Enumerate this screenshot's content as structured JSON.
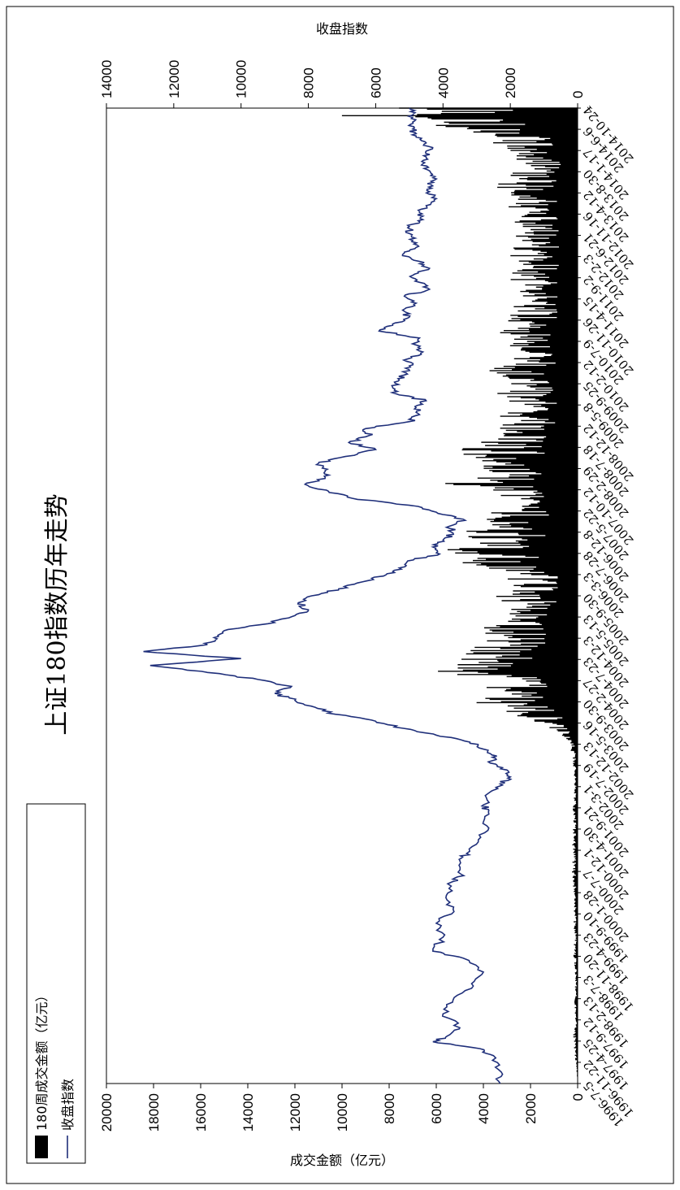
{
  "chart_data": {
    "type": "bar+line",
    "title": "上证180指数历年走势",
    "left_axis_label": "成交金额（亿元）",
    "right_axis_label": "收盘指数",
    "left_ylim": [
      0,
      20000
    ],
    "left_ticks": [
      "0",
      "2000",
      "4000",
      "6000",
      "8000",
      "10000",
      "12000",
      "14000",
      "16000",
      "18000",
      "20000"
    ],
    "right_ylim": [
      0,
      14000
    ],
    "right_ticks": [
      "0",
      "2000",
      "4000",
      "6000",
      "8000",
      "10000",
      "12000",
      "14000"
    ],
    "x_labels": [
      "1996-7-5",
      "1996-11-22",
      "1997-4-25",
      "1997-9-12",
      "1998-2-13",
      "1998-7-3",
      "1998-11-20",
      "1999-4-23",
      "1999-9-10",
      "2000-1-28",
      "2000-7-7",
      "2000-12-1",
      "2001-4-30",
      "2001-9-21",
      "2002-3-1",
      "2002-7-19",
      "2002-12-13",
      "2003-5-16",
      "2003-9-30",
      "2004-2-27",
      "2004-7-23",
      "2004-12-3",
      "2005-5-13",
      "2005-9-30",
      "2006-3-3",
      "2006-7-28",
      "2006-12-8",
      "2007-5-22",
      "2007-10-12",
      "2008-2-29",
      "2008-7-18",
      "2008-12-12",
      "2009-5-8",
      "2009-9-25",
      "2010-2-12",
      "2010-7-9",
      "2010-11-26",
      "2011-4-15",
      "2011-9-2",
      "2012-2-3",
      "2012-6-21",
      "2012-11-16",
      "2013-4-12",
      "2013-8-30",
      "2014-1-17",
      "2014-6-6",
      "2014-10-24"
    ],
    "legend": [
      {
        "label": "180周成交金额（亿元）",
        "kind": "bar",
        "color": "#000000"
      },
      {
        "label": "收盘指数",
        "kind": "line",
        "color": "#1F2F7A"
      }
    ],
    "close_index": [
      [
        0,
        2300
      ],
      [
        2,
        2350
      ],
      [
        4,
        2500
      ],
      [
        5,
        2900
      ],
      [
        6,
        4300
      ],
      [
        7,
        3800
      ],
      [
        8,
        3500
      ],
      [
        10,
        4000
      ],
      [
        12,
        3700
      ],
      [
        14,
        3100
      ],
      [
        16,
        2800
      ],
      [
        18,
        3400
      ],
      [
        19,
        4300
      ],
      [
        21,
        4000
      ],
      [
        23,
        4200
      ],
      [
        25,
        3700
      ],
      [
        27,
        3900
      ],
      [
        29,
        3700
      ],
      [
        30,
        3450
      ],
      [
        32,
        3500
      ],
      [
        33,
        3300
      ],
      [
        35,
        2950
      ],
      [
        37,
        2700
      ],
      [
        39,
        2650
      ],
      [
        40,
        2800
      ],
      [
        42,
        2550
      ],
      [
        43,
        2300
      ],
      [
        44,
        2000
      ],
      [
        45,
        2100
      ],
      [
        46,
        2600
      ],
      [
        47,
        2400
      ],
      [
        48,
        2800
      ],
      [
        49,
        3200
      ],
      [
        50,
        4200
      ],
      [
        51,
        5200
      ],
      [
        52,
        6000
      ],
      [
        53,
        7200
      ],
      [
        54,
        7800
      ],
      [
        55,
        8400
      ],
      [
        56,
        9000
      ],
      [
        57,
        8500
      ],
      [
        58,
        9500
      ],
      [
        59,
        11000
      ],
      [
        60,
        12700
      ],
      [
        61,
        10000
      ],
      [
        62,
        12900
      ],
      [
        63,
        11000
      ],
      [
        64,
        10800
      ],
      [
        65,
        10500
      ],
      [
        66,
        9200
      ],
      [
        67,
        8500
      ],
      [
        68,
        8000
      ],
      [
        69,
        8300
      ],
      [
        70,
        7900
      ],
      [
        71,
        7100
      ],
      [
        72,
        6400
      ],
      [
        73,
        5700
      ],
      [
        74,
        5300
      ],
      [
        75,
        5050
      ],
      [
        76,
        4100
      ],
      [
        77,
        4300
      ],
      [
        78,
        4000
      ],
      [
        79,
        3700
      ],
      [
        80,
        3800
      ],
      [
        81,
        3400
      ],
      [
        82,
        4200
      ],
      [
        83,
        5000
      ],
      [
        84,
        6700
      ],
      [
        85,
        7400
      ],
      [
        86,
        8100
      ],
      [
        87,
        7500
      ],
      [
        88,
        7500
      ],
      [
        89,
        7700
      ],
      [
        90,
        6900
      ],
      [
        91,
        6000
      ],
      [
        92,
        6800
      ],
      [
        93,
        6200
      ],
      [
        94,
        6300
      ],
      [
        95,
        5000
      ],
      [
        96,
        4700
      ],
      [
        97,
        4800
      ],
      [
        98,
        4500
      ],
      [
        99,
        5400
      ],
      [
        100,
        5500
      ],
      [
        101,
        5300
      ],
      [
        102,
        5100
      ],
      [
        103,
        5000
      ],
      [
        104,
        5050
      ],
      [
        105,
        4600
      ],
      [
        106,
        4800
      ],
      [
        107,
        4700
      ],
      [
        108,
        5900
      ],
      [
        109,
        5500
      ],
      [
        110,
        5000
      ],
      [
        111,
        5200
      ],
      [
        112,
        4800
      ],
      [
        113,
        5150
      ],
      [
        114,
        4400
      ],
      [
        115,
        4700
      ],
      [
        116,
        4900
      ],
      [
        117,
        4400
      ],
      [
        118,
        4700
      ],
      [
        119,
        5200
      ],
      [
        120,
        4800
      ],
      [
        121,
        4900
      ],
      [
        122,
        5000
      ],
      [
        123,
        5000
      ],
      [
        124,
        4600
      ],
      [
        125,
        4700
      ],
      [
        126,
        4500
      ],
      [
        127,
        4200
      ],
      [
        128,
        4400
      ],
      [
        129,
        4350
      ],
      [
        130,
        4300
      ],
      [
        131,
        4400
      ],
      [
        132,
        4600
      ],
      [
        133,
        4500
      ],
      [
        134,
        4400
      ],
      [
        135,
        4500
      ],
      [
        136,
        4800
      ],
      [
        137,
        4900
      ],
      [
        138,
        4900
      ],
      [
        139,
        4900
      ],
      [
        140,
        5000
      ]
    ],
    "turnover": [
      [
        0,
        0
      ],
      [
        5,
        120
      ],
      [
        7,
        160
      ],
      [
        9,
        80
      ],
      [
        11,
        120
      ],
      [
        13,
        100
      ],
      [
        15,
        80
      ],
      [
        17,
        120
      ],
      [
        19,
        180
      ],
      [
        21,
        110
      ],
      [
        23,
        150
      ],
      [
        25,
        130
      ],
      [
        27,
        110
      ],
      [
        29,
        180
      ],
      [
        31,
        200
      ],
      [
        33,
        150
      ],
      [
        35,
        220
      ],
      [
        37,
        150
      ],
      [
        39,
        180
      ],
      [
        41,
        130
      ],
      [
        43,
        120
      ],
      [
        45,
        150
      ],
      [
        47,
        180
      ],
      [
        48,
        250
      ],
      [
        49,
        400
      ],
      [
        50,
        700
      ],
      [
        51,
        1300
      ],
      [
        52,
        1500
      ],
      [
        53,
        2200
      ],
      [
        54,
        3100
      ],
      [
        55,
        3800
      ],
      [
        56,
        4400
      ],
      [
        57,
        3000
      ],
      [
        58,
        3500
      ],
      [
        59,
        5200
      ],
      [
        60,
        4900
      ],
      [
        61,
        4300
      ],
      [
        62,
        4600
      ],
      [
        63,
        4000
      ],
      [
        64,
        3700
      ],
      [
        65,
        3700
      ],
      [
        66,
        2600
      ],
      [
        67,
        2400
      ],
      [
        68,
        3100
      ],
      [
        69,
        2500
      ],
      [
        70,
        2900
      ],
      [
        71,
        2300
      ],
      [
        72,
        2500
      ],
      [
        73,
        2200
      ],
      [
        74,
        4800
      ],
      [
        75,
        3800
      ],
      [
        76,
        5200
      ],
      [
        77,
        4100
      ],
      [
        78,
        3700
      ],
      [
        79,
        4000
      ],
      [
        80,
        3300
      ],
      [
        81,
        3500
      ],
      [
        82,
        2900
      ],
      [
        83,
        3600
      ],
      [
        84,
        3000
      ],
      [
        85,
        3900
      ],
      [
        86,
        4800
      ],
      [
        87,
        3500
      ],
      [
        88,
        4000
      ],
      [
        89,
        3200
      ],
      [
        90,
        3900
      ],
      [
        91,
        4000
      ],
      [
        92,
        3500
      ],
      [
        93,
        2800
      ],
      [
        94,
        3300
      ],
      [
        95,
        2600
      ],
      [
        96,
        2900
      ],
      [
        97,
        2700
      ],
      [
        98,
        2400
      ],
      [
        99,
        2800
      ],
      [
        100,
        2300
      ],
      [
        101,
        2500
      ],
      [
        102,
        3400
      ],
      [
        103,
        2600
      ],
      [
        104,
        2400
      ],
      [
        105,
        2200
      ],
      [
        106,
        2600
      ],
      [
        107,
        2400
      ],
      [
        108,
        2900
      ],
      [
        109,
        2600
      ],
      [
        110,
        2300
      ],
      [
        111,
        2400
      ],
      [
        112,
        2100
      ],
      [
        113,
        2200
      ],
      [
        114,
        2700
      ],
      [
        115,
        2300
      ],
      [
        116,
        2400
      ],
      [
        117,
        1900
      ],
      [
        118,
        2100
      ],
      [
        119,
        2600
      ],
      [
        120,
        2200
      ],
      [
        121,
        2500
      ],
      [
        122,
        2000
      ],
      [
        123,
        2400
      ],
      [
        124,
        2100
      ],
      [
        125,
        1900
      ],
      [
        126,
        2700
      ],
      [
        127,
        2200
      ],
      [
        128,
        2500
      ],
      [
        129,
        2900
      ],
      [
        130,
        2300
      ],
      [
        131,
        2400
      ],
      [
        132,
        1900
      ],
      [
        133,
        2200
      ],
      [
        134,
        2300
      ],
      [
        135,
        3000
      ],
      [
        136,
        3300
      ],
      [
        137,
        4300
      ],
      [
        138,
        5600
      ],
      [
        139,
        9000
      ],
      [
        140,
        7000
      ]
    ]
  }
}
